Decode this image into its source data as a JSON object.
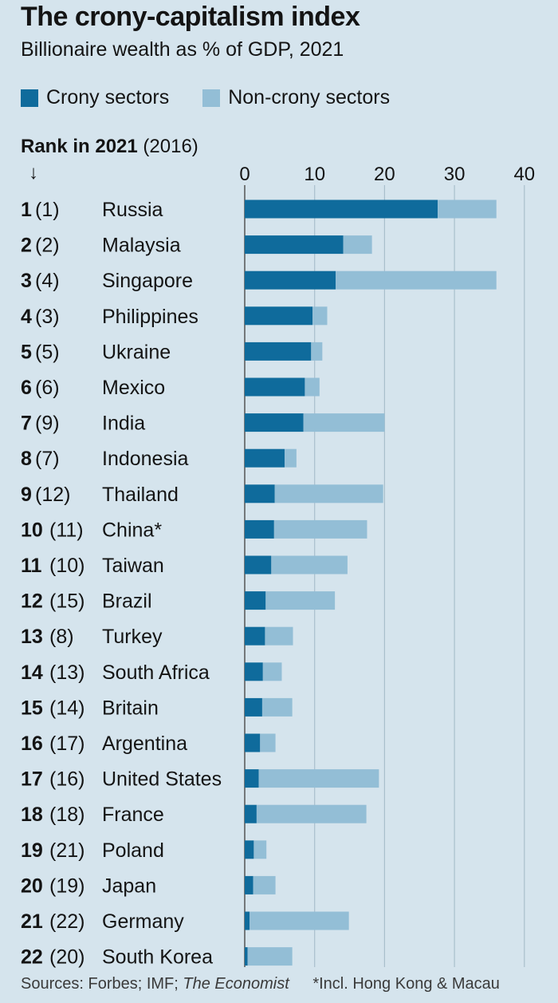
{
  "title": "The crony-capitalism index",
  "subtitle": "Billionaire wealth as % of GDP, 2021",
  "legend": {
    "crony_label": "Crony sectors",
    "noncrony_label": "Non-crony sectors"
  },
  "rank_header": {
    "bold": "Rank in 2021",
    "paren": "(2016)",
    "arrow": "↓"
  },
  "colors": {
    "background": "#d5e4ed",
    "crony": "#0f6b9c",
    "noncrony": "#93bed6",
    "grid": "#a9bfcc"
  },
  "footer": {
    "sources_prefix": "Sources: Forbes; IMF; ",
    "sources_italic": "The Economist",
    "note": "*Incl. Hong Kong & Macau"
  },
  "chart_data": {
    "type": "bar",
    "orientation": "horizontal",
    "stacked": true,
    "title": "The crony-capitalism index",
    "subtitle": "Billionaire wealth as % of GDP, 2021",
    "xlim": [
      0,
      40
    ],
    "xticks": [
      0,
      10,
      20,
      30,
      40
    ],
    "grid": true,
    "categories": [
      "Russia",
      "Malaysia",
      "Singapore",
      "Philippines",
      "Ukraine",
      "Mexico",
      "India",
      "Indonesia",
      "Thailand",
      "China*",
      "Taiwan",
      "Brazil",
      "Turkey",
      "South Africa",
      "Britain",
      "Argentina",
      "United States",
      "France",
      "Poland",
      "Japan",
      "Germany",
      "South Korea"
    ],
    "rank_2021": [
      "1",
      "2",
      "3",
      "4",
      "5",
      "6",
      "7",
      "8",
      "9",
      "10",
      "11",
      "12",
      "13",
      "14",
      "15",
      "16",
      "17",
      "18",
      "19",
      "20",
      "21",
      "22"
    ],
    "rank_2016": [
      "(1)",
      "(2)",
      "(4)",
      "(3)",
      "(5)",
      "(6)",
      "(9)",
      "(7)",
      "(12)",
      "(11)",
      "(10)",
      "(15)",
      "(8)",
      "(13)",
      "(14)",
      "(17)",
      "(16)",
      "(18)",
      "(21)",
      "(19)",
      "(22)",
      "(20)"
    ],
    "series": [
      {
        "name": "Crony sectors",
        "values": [
          27.6,
          14.1,
          13.0,
          9.7,
          9.5,
          8.6,
          8.4,
          5.7,
          4.3,
          4.2,
          3.8,
          3.0,
          2.9,
          2.6,
          2.5,
          2.2,
          2.0,
          1.7,
          1.3,
          1.2,
          0.7,
          0.4
        ]
      },
      {
        "name": "Non-crony sectors",
        "values": [
          8.4,
          4.1,
          23.0,
          2.1,
          1.6,
          2.1,
          11.6,
          1.7,
          15.5,
          13.3,
          10.9,
          9.9,
          4.0,
          2.7,
          4.3,
          2.2,
          17.2,
          15.7,
          1.8,
          3.2,
          14.2,
          6.4
        ]
      }
    ]
  }
}
